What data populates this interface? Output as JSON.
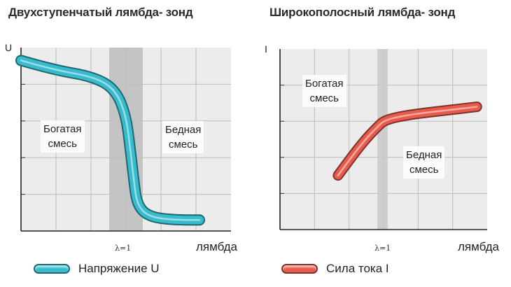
{
  "chart_data": [
    {
      "type": "line",
      "title": "Двухступенчатый лямбда- зонд",
      "ylabel": "U",
      "xlabel": "лямбда",
      "x_tick_label": "λ=1",
      "x": [
        0.0,
        0.15,
        0.35,
        0.45,
        0.5,
        0.52,
        0.54,
        0.55,
        0.57,
        0.6,
        0.65,
        0.75,
        0.85
      ],
      "series": [
        {
          "name": "Напряжение U",
          "color": "#38bccd",
          "values": [
            0.93,
            0.88,
            0.84,
            0.77,
            0.63,
            0.45,
            0.25,
            0.17,
            0.12,
            0.09,
            0.07,
            0.06,
            0.06
          ]
        }
      ],
      "highlight_band": {
        "x": [
          0.42,
          0.58
        ],
        "color": "#bdbdbd"
      },
      "annotations": [
        {
          "id": "rich",
          "lines": [
            "Богатая",
            "смесь"
          ]
        },
        {
          "id": "lean",
          "lines": [
            "Бедная",
            "смесь"
          ]
        }
      ],
      "grid": true
    },
    {
      "type": "line",
      "title": "Широкополосный лямбда- зонд",
      "ylabel": "I",
      "xlabel": "лямбда",
      "x_tick_label": "λ=1",
      "x": [
        0.28,
        0.35,
        0.42,
        0.48,
        0.5,
        0.55,
        0.65,
        0.8,
        0.95
      ],
      "series": [
        {
          "name": "Сила тока I",
          "color": "#e75a4c",
          "values": [
            0.3,
            0.41,
            0.51,
            0.58,
            0.6,
            0.62,
            0.64,
            0.66,
            0.68
          ]
        }
      ],
      "highlight_band": {
        "x": [
          0.47,
          0.52
        ],
        "color": "#c9c9c9"
      },
      "annotations": [
        {
          "id": "rich",
          "lines": [
            "Богатая",
            "смесь"
          ]
        },
        {
          "id": "lean",
          "lines": [
            "Бедная",
            "смесь"
          ]
        }
      ],
      "grid": true
    }
  ]
}
